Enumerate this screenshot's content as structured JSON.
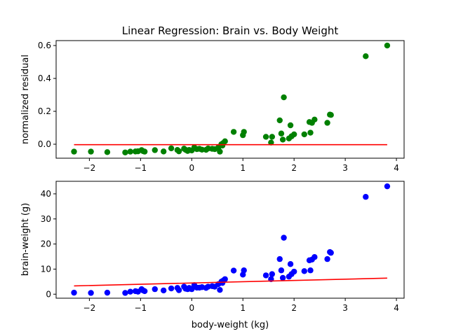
{
  "chart_data": [
    {
      "type": "scatter",
      "title": "Linear Regression: Brain vs. Body Weight",
      "xlabel": "",
      "ylabel": "normalized residual",
      "xlim": [
        -2.65,
        4.15
      ],
      "ylim": [
        -0.085,
        0.63
      ],
      "xticks": [
        -2,
        -1,
        0,
        1,
        2,
        3,
        4
      ],
      "yticks": [
        0.0,
        0.2,
        0.4,
        0.6
      ],
      "ytick_labels": [
        "0.0",
        "0.2",
        "0.4",
        "0.6"
      ],
      "point_color": "#008000",
      "line_color": "#ff0000",
      "points": [
        [
          -2.3,
          -0.045
        ],
        [
          -1.97,
          -0.045
        ],
        [
          -1.65,
          -0.048
        ],
        [
          -1.3,
          -0.05
        ],
        [
          -1.2,
          -0.045
        ],
        [
          -1.1,
          -0.044
        ],
        [
          -1.05,
          -0.043
        ],
        [
          -0.98,
          -0.036
        ],
        [
          -0.95,
          -0.042
        ],
        [
          -0.92,
          -0.045
        ],
        [
          -0.72,
          -0.036
        ],
        [
          -0.55,
          -0.044
        ],
        [
          -0.4,
          -0.025
        ],
        [
          -0.28,
          -0.035
        ],
        [
          -0.25,
          -0.043
        ],
        [
          -0.15,
          -0.027
        ],
        [
          -0.12,
          -0.034
        ],
        [
          -0.08,
          -0.041
        ],
        [
          -0.05,
          -0.035
        ],
        [
          0.0,
          -0.038
        ],
        [
          0.05,
          -0.02
        ],
        [
          0.1,
          -0.03
        ],
        [
          0.15,
          -0.028
        ],
        [
          0.2,
          -0.033
        ],
        [
          0.28,
          -0.034
        ],
        [
          0.32,
          -0.026
        ],
        [
          0.4,
          -0.028
        ],
        [
          0.45,
          -0.03
        ],
        [
          0.52,
          -0.02
        ],
        [
          0.55,
          -0.045
        ],
        [
          0.58,
          0.0
        ],
        [
          0.6,
          -0.008
        ],
        [
          0.62,
          0.008
        ],
        [
          0.65,
          0.018
        ],
        [
          0.82,
          0.075
        ],
        [
          1.0,
          0.055
        ],
        [
          1.02,
          0.075
        ],
        [
          1.45,
          0.045
        ],
        [
          1.55,
          0.01
        ],
        [
          1.57,
          0.045
        ],
        [
          1.72,
          0.145
        ],
        [
          1.75,
          0.065
        ],
        [
          1.78,
          0.028
        ],
        [
          1.8,
          0.285
        ],
        [
          1.9,
          0.035
        ],
        [
          1.93,
          0.115
        ],
        [
          1.95,
          0.048
        ],
        [
          2.0,
          0.06
        ],
        [
          2.2,
          0.06
        ],
        [
          2.3,
          0.135
        ],
        [
          2.32,
          0.07
        ],
        [
          2.35,
          0.13
        ],
        [
          2.4,
          0.15
        ],
        [
          2.65,
          0.13
        ],
        [
          2.7,
          0.18
        ],
        [
          2.72,
          0.178
        ],
        [
          3.4,
          0.535
        ],
        [
          3.82,
          0.6
        ]
      ],
      "regression_line": {
        "x": [
          -2.3,
          3.82
        ],
        "y": [
          -0.003,
          -0.003
        ]
      }
    },
    {
      "type": "scatter",
      "title": "",
      "xlabel": "body-weight (kg)",
      "ylabel": "brain-weight (g)",
      "xlim": [
        -2.65,
        4.15
      ],
      "ylim": [
        -1.6,
        45
      ],
      "xticks": [
        -2,
        -1,
        0,
        1,
        2,
        3,
        4
      ],
      "yticks": [
        0,
        10,
        20,
        30,
        40
      ],
      "ytick_labels": [
        "0",
        "10",
        "20",
        "30",
        "40"
      ],
      "point_color": "#0000ff",
      "line_color": "#ff0000",
      "points": [
        [
          -2.3,
          0.6
        ],
        [
          -1.97,
          0.5
        ],
        [
          -1.65,
          0.6
        ],
        [
          -1.3,
          0.5
        ],
        [
          -1.2,
          1.0
        ],
        [
          -1.1,
          1.2
        ],
        [
          -1.05,
          1.0
        ],
        [
          -0.98,
          2.0
        ],
        [
          -0.95,
          1.5
        ],
        [
          -0.92,
          1.2
        ],
        [
          -0.72,
          2.0
        ],
        [
          -0.55,
          1.5
        ],
        [
          -0.4,
          2.3
        ],
        [
          -0.28,
          2.5
        ],
        [
          -0.25,
          1.6
        ],
        [
          -0.15,
          3.0
        ],
        [
          -0.12,
          2.2
        ],
        [
          -0.08,
          2.0
        ],
        [
          -0.05,
          2.5
        ],
        [
          0.0,
          2.0
        ],
        [
          0.05,
          3.6
        ],
        [
          0.1,
          2.6
        ],
        [
          0.15,
          2.6
        ],
        [
          0.2,
          2.8
        ],
        [
          0.28,
          2.5
        ],
        [
          0.32,
          3.0
        ],
        [
          0.4,
          3.2
        ],
        [
          0.45,
          3.0
        ],
        [
          0.52,
          4.0
        ],
        [
          0.55,
          1.7
        ],
        [
          0.58,
          5.0
        ],
        [
          0.6,
          4.5
        ],
        [
          0.62,
          5.5
        ],
        [
          0.65,
          6.0
        ],
        [
          0.82,
          9.4
        ],
        [
          1.0,
          7.8
        ],
        [
          1.02,
          9.5
        ],
        [
          1.45,
          7.5
        ],
        [
          1.55,
          6.0
        ],
        [
          1.57,
          8.0
        ],
        [
          1.72,
          14.0
        ],
        [
          1.75,
          9.5
        ],
        [
          1.78,
          6.5
        ],
        [
          1.8,
          22.5
        ],
        [
          1.9,
          7.0
        ],
        [
          1.93,
          12.0
        ],
        [
          1.95,
          8.0
        ],
        [
          2.0,
          9.0
        ],
        [
          2.2,
          9.2
        ],
        [
          2.3,
          13.5
        ],
        [
          2.32,
          9.5
        ],
        [
          2.35,
          13.8
        ],
        [
          2.4,
          14.8
        ],
        [
          2.65,
          14.0
        ],
        [
          2.7,
          16.8
        ],
        [
          2.72,
          16.5
        ],
        [
          3.4,
          38.8
        ],
        [
          3.82,
          43.0
        ]
      ],
      "regression_line": {
        "x": [
          -2.3,
          3.82
        ],
        "y": [
          3.3,
          6.4
        ]
      }
    }
  ]
}
